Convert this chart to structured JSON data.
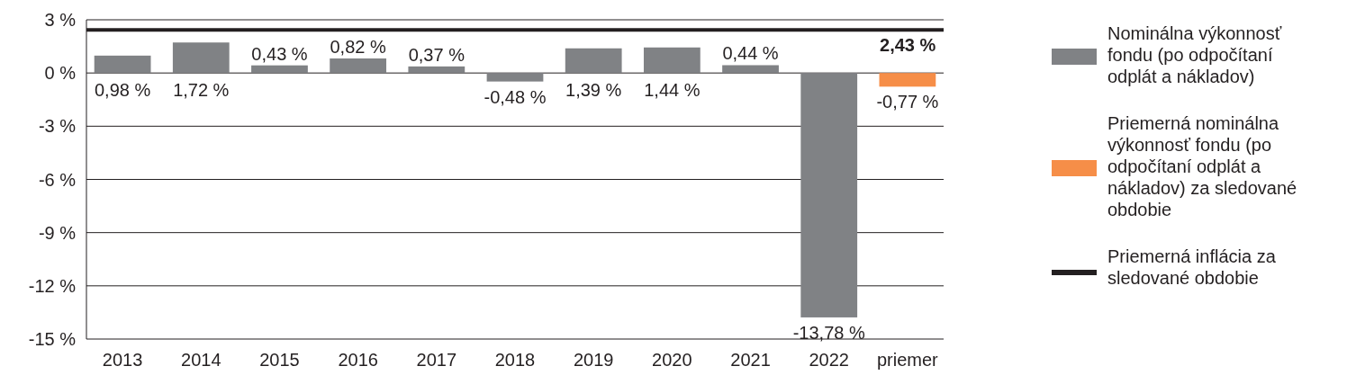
{
  "chart_data": {
    "type": "bar",
    "categories": [
      "2013",
      "2014",
      "2015",
      "2016",
      "2017",
      "2018",
      "2019",
      "2020",
      "2021",
      "2022",
      "priemer"
    ],
    "series": [
      {
        "name": "Nominálna výkonnosť fondu (po odpočítaní odplát a nákladov)",
        "color": "#808285",
        "values": [
          0.98,
          1.72,
          0.43,
          0.82,
          0.37,
          -0.48,
          1.39,
          1.44,
          0.44,
          -13.78,
          null
        ],
        "value_labels": [
          "0,98 %",
          "1,72 %",
          "0,43 %",
          "0,82 %",
          "0,37 %",
          "-0,48 %",
          "1,39 %",
          "1,44 %",
          "0,44 %",
          "-13,78 %",
          null
        ]
      },
      {
        "name": "Priemerná nominálna výkonnosť fondu (po odpočítaní odplát a nákladov) za sledované obdobie",
        "color": "#f68e48",
        "values": [
          null,
          null,
          null,
          null,
          null,
          null,
          null,
          null,
          null,
          null,
          -0.77
        ],
        "value_labels": [
          null,
          null,
          null,
          null,
          null,
          null,
          null,
          null,
          null,
          null,
          "-0,77 %"
        ]
      }
    ],
    "ylim": [
      -15,
      3
    ],
    "yticks": [
      {
        "value": 3,
        "label": "3 %"
      },
      {
        "value": 0,
        "label": "0 %"
      },
      {
        "value": -3,
        "label": "-3 %"
      },
      {
        "value": -6,
        "label": "-6 %"
      },
      {
        "value": -9,
        "label": "-9 %"
      },
      {
        "value": -12,
        "label": "-12 %"
      },
      {
        "value": -15,
        "label": "-15 %"
      }
    ],
    "grid": "y",
    "legend": "right",
    "ref_lines": [
      {
        "axis": "y",
        "value": 2.43,
        "label": "Priemerná inflácia za sledované obdobie",
        "color": "#231f20"
      }
    ],
    "annotations": [
      {
        "text": "2,43 %",
        "x": "priemer",
        "y": 2.43
      }
    ]
  }
}
